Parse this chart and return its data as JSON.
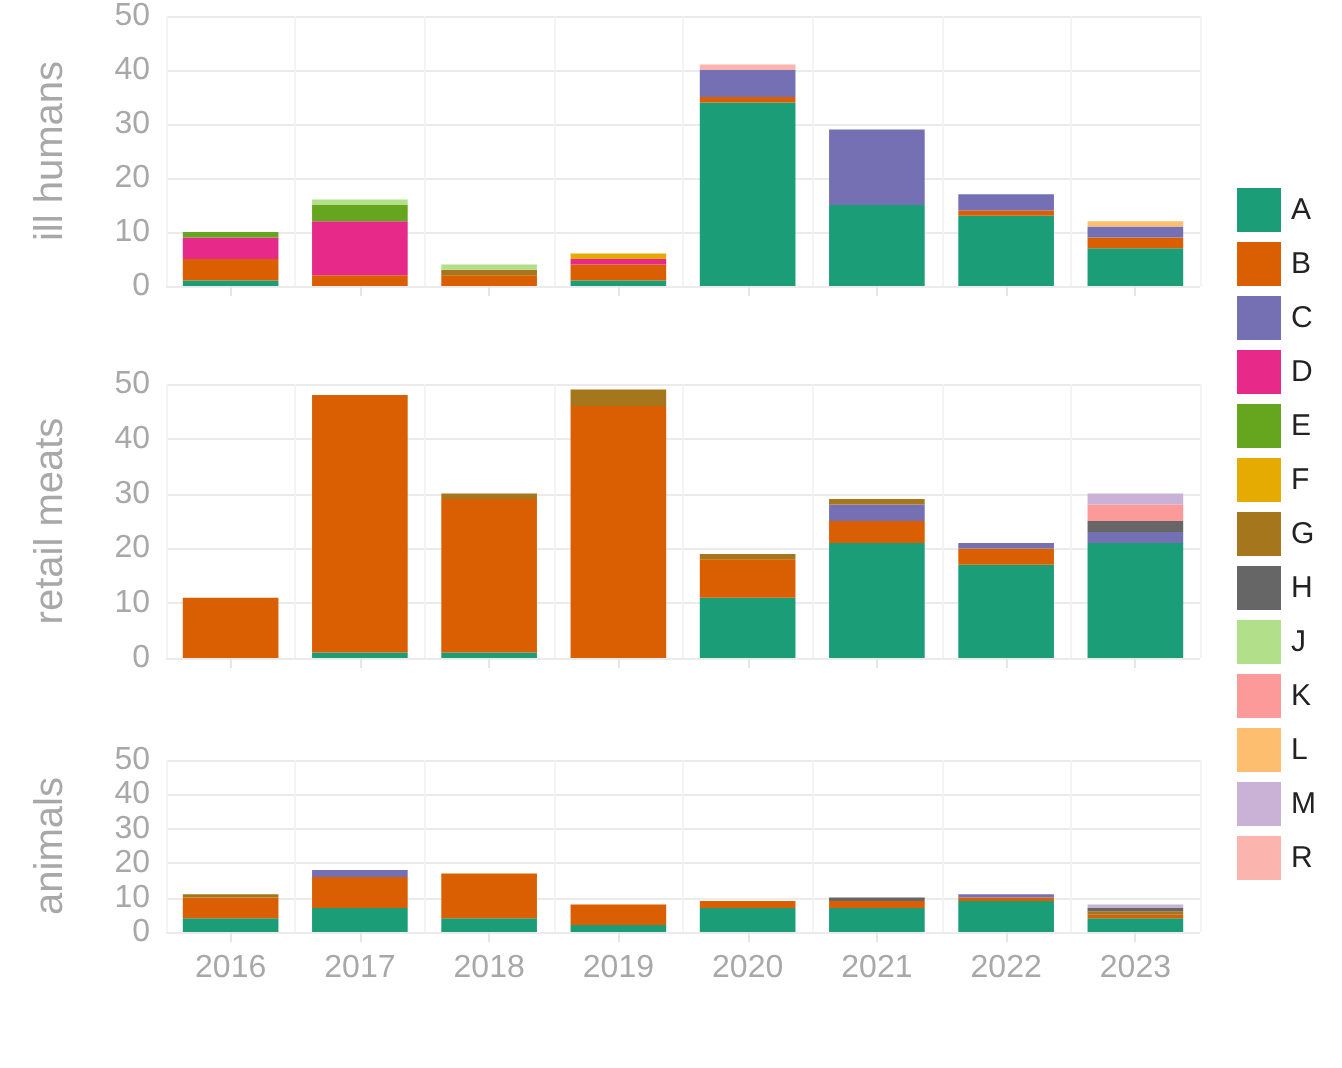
{
  "chart_data": [
    {
      "type": "bar",
      "stacked": true,
      "ylabel": "ill humans",
      "categories": [
        "2016",
        "2017",
        "2018",
        "2019",
        "2020",
        "2021",
        "2022",
        "2023"
      ],
      "ylim": [
        0,
        50
      ],
      "yticks": [
        0,
        10,
        20,
        30,
        40,
        50
      ],
      "grid": true,
      "tick_labels": "y",
      "legend": "right",
      "series": [
        {
          "name": "A",
          "color": "#1b9e77",
          "values": [
            1,
            null,
            null,
            1,
            34,
            15,
            13,
            7
          ]
        },
        {
          "name": "B",
          "color": "#d95f02",
          "values": [
            4,
            2,
            2,
            3,
            1,
            null,
            1,
            2
          ]
        },
        {
          "name": "C",
          "color": "#7570b3",
          "values": [
            null,
            null,
            null,
            null,
            5,
            14,
            3,
            2
          ]
        },
        {
          "name": "D",
          "color": "#e7298a",
          "values": [
            4,
            10,
            null,
            1,
            null,
            null,
            null,
            null
          ]
        },
        {
          "name": "E",
          "color": "#66a61e",
          "values": [
            1,
            3,
            null,
            null,
            null,
            null,
            null,
            null
          ]
        },
        {
          "name": "F",
          "color": "#e6ab02",
          "values": [
            null,
            null,
            null,
            1,
            null,
            null,
            null,
            null
          ]
        },
        {
          "name": "G",
          "color": "#a6761d",
          "values": [
            null,
            null,
            1,
            null,
            null,
            null,
            null,
            null
          ]
        },
        {
          "name": "H",
          "color": "#666666",
          "values": [
            null,
            null,
            null,
            null,
            null,
            null,
            null,
            null
          ]
        },
        {
          "name": "J",
          "color": "#b2df8a",
          "values": [
            null,
            1,
            1,
            null,
            null,
            null,
            null,
            null
          ]
        },
        {
          "name": "K",
          "color": "#fb9a99",
          "values": [
            null,
            null,
            null,
            null,
            null,
            null,
            null,
            null
          ]
        },
        {
          "name": "L",
          "color": "#fdbf6f",
          "values": [
            null,
            null,
            null,
            null,
            null,
            null,
            null,
            1
          ]
        },
        {
          "name": "M",
          "color": "#cab2d6",
          "values": [
            null,
            null,
            null,
            null,
            null,
            null,
            null,
            null
          ]
        },
        {
          "name": "R",
          "color": "#fbb4ae",
          "values": [
            null,
            null,
            null,
            null,
            1,
            null,
            null,
            null
          ]
        }
      ]
    },
    {
      "type": "bar",
      "stacked": true,
      "ylabel": "retail meats",
      "categories": [
        "2016",
        "2017",
        "2018",
        "2019",
        "2020",
        "2021",
        "2022",
        "2023"
      ],
      "ylim": [
        0,
        50
      ],
      "yticks": [
        0,
        10,
        20,
        30,
        40,
        50
      ],
      "grid": true,
      "tick_labels": "y",
      "series": [
        {
          "color": "#1b9e77",
          "values": [
            null,
            1,
            1,
            null,
            11,
            21,
            17,
            21
          ]
        },
        {
          "color": "#d95f02",
          "values": [
            11,
            47,
            28,
            46,
            7,
            4,
            3,
            null
          ]
        },
        {
          "color": "#7570b3",
          "values": [
            null,
            null,
            null,
            null,
            null,
            3,
            1,
            2
          ]
        },
        {
          "color": "#a6761d",
          "values": [
            null,
            null,
            1,
            3,
            1,
            1,
            null,
            null
          ]
        },
        {
          "color": "#666666",
          "values": [
            null,
            null,
            null,
            null,
            null,
            null,
            null,
            2
          ]
        },
        {
          "color": "#fb9a99",
          "values": [
            null,
            null,
            null,
            null,
            null,
            null,
            null,
            3
          ]
        },
        {
          "color": "#cab2d6",
          "values": [
            null,
            null,
            null,
            null,
            null,
            null,
            null,
            2
          ]
        }
      ]
    },
    {
      "type": "bar",
      "stacked": true,
      "ylabel": "animals",
      "categories": [
        "2016",
        "2017",
        "2018",
        "2019",
        "2020",
        "2021",
        "2022",
        "2023"
      ],
      "ylim": [
        0,
        50
      ],
      "yticks": [
        0,
        10,
        20,
        30,
        40,
        50
      ],
      "grid": true,
      "series": [
        {
          "color": "#1b9e77",
          "values": [
            4,
            7,
            4,
            2,
            7,
            7,
            9,
            4
          ]
        },
        {
          "color": "#d95f02",
          "values": [
            6,
            9,
            13,
            6,
            2,
            2,
            1,
            1
          ]
        },
        {
          "color": "#7570b3",
          "values": [
            null,
            2,
            null,
            null,
            null,
            null,
            1,
            null
          ]
        },
        {
          "color": "#a6761d",
          "values": [
            1,
            null,
            null,
            null,
            null,
            null,
            null,
            1
          ]
        },
        {
          "color": "#666666",
          "values": [
            null,
            null,
            null,
            null,
            null,
            1,
            null,
            1
          ]
        },
        {
          "color": "#cab2d6",
          "values": [
            null,
            null,
            null,
            null,
            null,
            null,
            null,
            1
          ]
        }
      ]
    }
  ]
}
